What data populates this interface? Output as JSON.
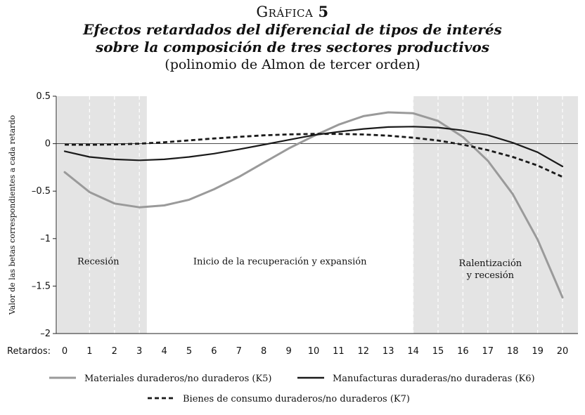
{
  "header": {
    "figure_label_prefix": "Gráfica",
    "figure_number": "5",
    "title_line1": "Efectos retardados del diferencial de tipos de interés",
    "title_line2": "sobre la composición de tres sectores productivos",
    "subtitle": "(polinomio de Almon de tercer orden)"
  },
  "chart_data": {
    "type": "line",
    "ylabel": "Valor de las betas correspondientes a cada retardo",
    "xlabel": "Retardos:",
    "x": [
      0,
      1,
      2,
      3,
      4,
      5,
      6,
      7,
      8,
      9,
      10,
      11,
      12,
      13,
      14,
      15,
      16,
      17,
      18,
      19,
      20
    ],
    "xlim": [
      0,
      20
    ],
    "ylim": [
      -2,
      0.5
    ],
    "yticks": [
      0.5,
      0,
      -0.5,
      -1,
      -1.5,
      -2
    ],
    "ytick_labels": [
      "0.5",
      "0",
      "–0.5",
      "–1",
      "–1.5",
      "–2"
    ],
    "xtick_labels": [
      "0",
      "1",
      "2",
      "3",
      "4",
      "5",
      "6",
      "7",
      "8",
      "9",
      "10",
      "11",
      "12",
      "13",
      "14",
      "15",
      "16",
      "17",
      "18",
      "19",
      "20"
    ],
    "vertical_dashed_grid": true,
    "zero_line": true,
    "shaded_regions": [
      {
        "from": -0.3,
        "to": 3.3,
        "label_lines": [
          "Recesión"
        ],
        "label_x": 1.35,
        "label_y": -1.27
      },
      {
        "from": 14,
        "to": 20.8,
        "label_lines": [
          "Ralentización",
          "y recesión"
        ],
        "label_x": 17.1,
        "label_y": -1.29
      }
    ],
    "annotations": [
      {
        "text": "Inicio de la recuperación y expansión",
        "x": 8.65,
        "y": -1.27
      }
    ],
    "series": [
      {
        "name": "Materiales duraderos/no duraderos (K5)",
        "color": "#9a9a9a",
        "style": "solid",
        "values": [
          -0.3,
          -0.51,
          -0.63,
          -0.67,
          -0.65,
          -0.59,
          -0.48,
          -0.35,
          -0.2,
          -0.05,
          0.08,
          0.2,
          0.29,
          0.33,
          0.32,
          0.24,
          0.07,
          -0.18,
          -0.53,
          -1.01,
          -1.62
        ]
      },
      {
        "name": "Manufacturas duraderas/no duraderas (K6)",
        "color": "#1a1a1a",
        "style": "solid",
        "values": [
          -0.08,
          -0.14,
          -0.165,
          -0.175,
          -0.165,
          -0.14,
          -0.105,
          -0.06,
          -0.01,
          0.04,
          0.09,
          0.125,
          0.155,
          0.175,
          0.18,
          0.17,
          0.14,
          0.09,
          0.01,
          -0.09,
          -0.24
        ]
      },
      {
        "name": "Bienes de consumo duraderos/no duraderos (K7)",
        "color": "#1a1a1a",
        "style": "dashed",
        "values": [
          -0.01,
          -0.012,
          -0.008,
          0.0,
          0.015,
          0.035,
          0.055,
          0.072,
          0.088,
          0.098,
          0.103,
          0.103,
          0.097,
          0.084,
          0.063,
          0.033,
          -0.01,
          -0.068,
          -0.14,
          -0.23,
          -0.35
        ]
      }
    ]
  }
}
